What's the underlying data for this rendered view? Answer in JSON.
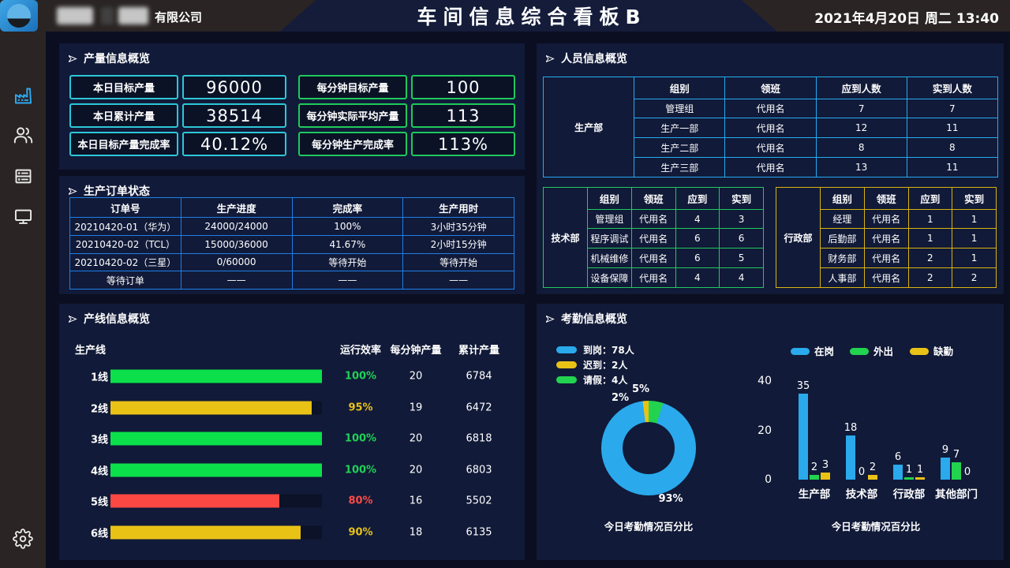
{
  "header": {
    "company_suffix": "有限公司",
    "title": "车间信息综合看板B",
    "datetime": "2021年4月20日 周二 13:40"
  },
  "sidebar": {
    "icons": [
      "factory-icon",
      "users-icon",
      "server-icon",
      "monitor-icon",
      "gear-icon"
    ]
  },
  "colors": {
    "stat_cyan": "#2cc7d8",
    "stat_green": "#1fc95c",
    "orders_border": "#1e7fe8",
    "personnel_border": "#26aaf0",
    "tech_border": "#21c95e",
    "admin_border": "#d9b310",
    "chart_blue": "#2aa9ec",
    "chart_green": "#22d34f",
    "chart_yellow": "#e9c216",
    "bar_red": "#fc4842"
  },
  "panels": {
    "production": {
      "title": "产量信息概览",
      "stats_left": [
        {
          "label": "本日目标产量",
          "value": "96000"
        },
        {
          "label": "本日累计产量",
          "value": "38514"
        },
        {
          "label": "本日目标产量完成率",
          "value": "40.12%"
        }
      ],
      "stats_right": [
        {
          "label": "每分钟目标产量",
          "value": "100"
        },
        {
          "label": "每分钟实际平均产量",
          "value": "113"
        },
        {
          "label": "每分钟生产完成率",
          "value": "113%"
        }
      ]
    },
    "orders": {
      "title": "生产订单状态",
      "headers": [
        "订单号",
        "生产进度",
        "完成率",
        "生产用时"
      ],
      "rows": [
        [
          "20210420-01（华为）",
          "24000/24000",
          "100%",
          "3小时35分钟"
        ],
        [
          "20210420-02（TCL）",
          "15000/36000",
          "41.67%",
          "2小时15分钟"
        ],
        [
          "20210420-02（三星）",
          "0/60000",
          "等待开始",
          "等待开始"
        ],
        [
          "等待订单",
          "——",
          "——",
          "——"
        ]
      ]
    },
    "personnel": {
      "title": "人员信息概览",
      "tables": [
        {
          "group": "生产部",
          "accent": "#26aaf0",
          "headers": [
            "组别",
            "领班",
            "应到人数",
            "实到人数"
          ],
          "rows": [
            [
              "管理组",
              "代用名",
              "7",
              "7"
            ],
            [
              "生产一部",
              "代用名",
              "12",
              "11"
            ],
            [
              "生产二部",
              "代用名",
              "8",
              "8"
            ],
            [
              "生产三部",
              "代用名",
              "13",
              "11"
            ]
          ]
        },
        {
          "group": "技术部",
          "accent": "#21c95e",
          "headers": [
            "组别",
            "领班",
            "应到",
            "实到"
          ],
          "rows": [
            [
              "管理组",
              "代用名",
              "4",
              "3"
            ],
            [
              "程序调试",
              "代用名",
              "6",
              "6"
            ],
            [
              "机械维修",
              "代用名",
              "6",
              "5"
            ],
            [
              "设备保障",
              "代用名",
              "4",
              "4"
            ]
          ]
        },
        {
          "group": "行政部",
          "accent": "#d9b310",
          "headers": [
            "组别",
            "领班",
            "应到",
            "实到"
          ],
          "rows": [
            [
              "经理",
              "代用名",
              "1",
              "1"
            ],
            [
              "后勤部",
              "代用名",
              "1",
              "1"
            ],
            [
              "财务部",
              "代用名",
              "2",
              "1"
            ],
            [
              "人事部",
              "代用名",
              "2",
              "2"
            ]
          ]
        }
      ]
    },
    "lines": {
      "title": "产线信息概览",
      "headers": {
        "line": "生产线",
        "efficiency": "运行效率",
        "per_minute": "每分钟产量",
        "total": "累计产量"
      },
      "rows": [
        {
          "name": "1线",
          "efficiency": 100,
          "efficiency_label": "100%",
          "color": "#0be04a",
          "text_color": "#20d155",
          "per_minute": "20",
          "total": "6784"
        },
        {
          "name": "2线",
          "efficiency": 95,
          "efficiency_label": "95%",
          "color": "#e9c216",
          "text_color": "#e9c216",
          "per_minute": "19",
          "total": "6472"
        },
        {
          "name": "3线",
          "efficiency": 100,
          "efficiency_label": "100%",
          "color": "#0be04a",
          "text_color": "#20d155",
          "per_minute": "20",
          "total": "6818"
        },
        {
          "name": "4线",
          "efficiency": 100,
          "efficiency_label": "100%",
          "color": "#0be04a",
          "text_color": "#20d155",
          "per_minute": "20",
          "total": "6803"
        },
        {
          "name": "5线",
          "efficiency": 80,
          "efficiency_label": "80%",
          "color": "#fc4842",
          "text_color": "#ff4a45",
          "per_minute": "16",
          "total": "5502"
        },
        {
          "name": "6线",
          "efficiency": 90,
          "efficiency_label": "90%",
          "color": "#e9c216",
          "text_color": "#e9c216",
          "per_minute": "18",
          "total": "6135"
        }
      ]
    },
    "attendance": {
      "title": "考勤信息概览",
      "donut_caption": "今日考勤情况百分比",
      "bar_caption": "今日考勤情况百分比"
    }
  },
  "chart_data": [
    {
      "type": "pie",
      "title": "今日考勤情况百分比",
      "legend_position": "top-left",
      "clockwise_from_top": [
        "请假",
        "到岗",
        "迟到"
      ],
      "slices": [
        {
          "label": "到岗",
          "legend": "到岗：78人",
          "count": 78,
          "percent": 93,
          "percent_label": "93%",
          "color": "#2aa9ec"
        },
        {
          "label": "迟到",
          "legend": "迟到：2人",
          "count": 2,
          "percent": 2,
          "percent_label": "2%",
          "color": "#e9c216"
        },
        {
          "label": "请假",
          "legend": "请假：4人",
          "count": 4,
          "percent": 5,
          "percent_label": "5%",
          "color": "#22d34f"
        }
      ]
    },
    {
      "type": "bar",
      "title": "今日考勤情况百分比",
      "categories": [
        "生产部",
        "技术部",
        "行政部",
        "其他部门"
      ],
      "series": [
        {
          "name": "在岗",
          "color": "#2aa9ec",
          "values": [
            35,
            18,
            6,
            9
          ]
        },
        {
          "name": "外出",
          "color": "#22d34f",
          "values": [
            2,
            0,
            1,
            7
          ]
        },
        {
          "name": "缺勤",
          "color": "#e9c216",
          "values": [
            3,
            2,
            1,
            0
          ]
        }
      ],
      "ylim": [
        0,
        40
      ],
      "yticks": [
        0,
        20,
        40
      ],
      "grid": false,
      "legend_position": "top"
    },
    {
      "type": "bar",
      "title": "产线信息概览",
      "orientation": "horizontal",
      "categories": [
        "1线",
        "2线",
        "3线",
        "4线",
        "5线",
        "6线"
      ],
      "series": [
        {
          "name": "运行效率%",
          "values": [
            100,
            95,
            100,
            100,
            80,
            90
          ]
        },
        {
          "name": "每分钟产量",
          "values": [
            20,
            19,
            20,
            20,
            16,
            18
          ]
        },
        {
          "name": "累计产量",
          "values": [
            6784,
            6472,
            6818,
            6803,
            5502,
            6135
          ]
        }
      ],
      "xlim": [
        0,
        100
      ]
    }
  ]
}
